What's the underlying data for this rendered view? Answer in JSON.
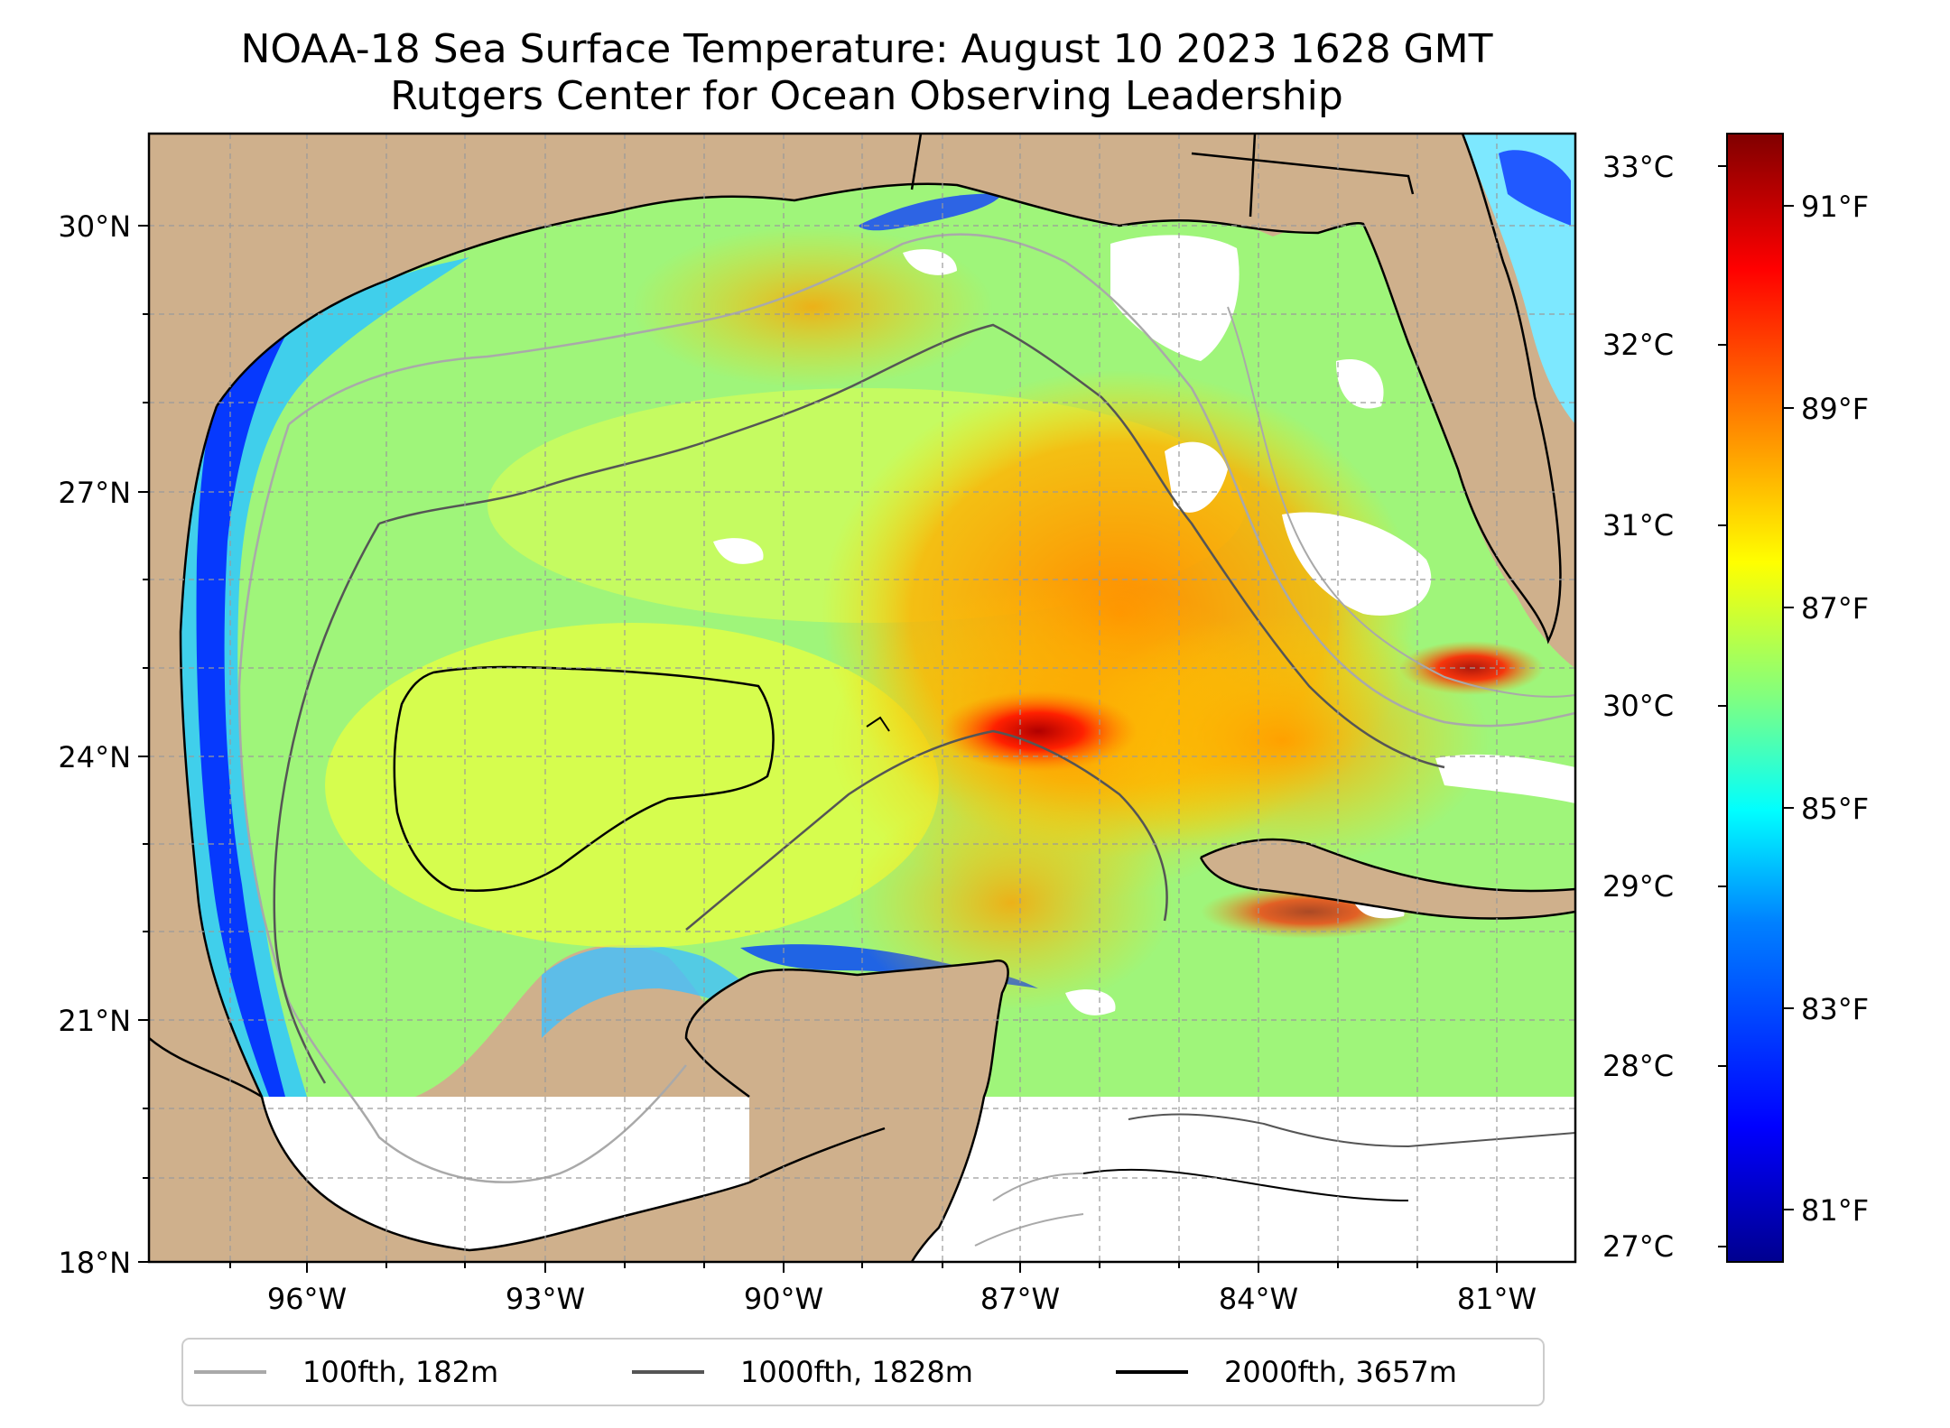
{
  "title": "NOAA-18 Sea Surface Temperature: August 10 2023 1628 GMT",
  "subtitle": "Rutgers Center for Ocean Observing Leadership",
  "map": {
    "lat_ticks": [
      "30°N",
      "27°N",
      "24°N",
      "21°N",
      "18°N"
    ],
    "lon_ticks": [
      "96°W",
      "93°W",
      "90°W",
      "87°W",
      "84°W",
      "81°W"
    ],
    "gridlines": true,
    "land_color": "#cfb08c",
    "no_data_color": "#ffffff"
  },
  "legend": {
    "placement": "bottom-center",
    "entries": [
      {
        "label": "100fth, 182m",
        "color": "#a9a9a9"
      },
      {
        "label": "1000fth, 1828m",
        "color": "#555555"
      },
      {
        "label": "2000fth, 3657m",
        "color": "#000000"
      }
    ]
  },
  "colorbar": {
    "colormap": "jet",
    "celsius_ticks": [
      "33°C",
      "32°C",
      "31°C",
      "30°C",
      "29°C",
      "28°C",
      "27°C"
    ],
    "fahrenheit_ticks": [
      "91°F",
      "89°F",
      "87°F",
      "85°F",
      "83°F",
      "81°F"
    ],
    "colors": [
      "#00008f",
      "#0000ff",
      "#0080ff",
      "#00ffff",
      "#80ff80",
      "#ffff00",
      "#ff8000",
      "#ff0000",
      "#800000"
    ]
  }
}
